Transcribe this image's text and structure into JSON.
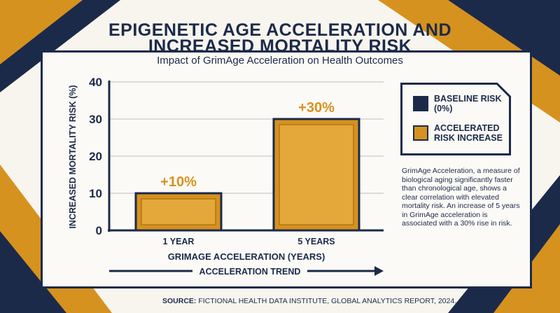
{
  "header": {
    "title_line1": "EPIGENETIC AGE ACCELERATION AND",
    "title_line2": "INCREASED MORTALITY RISK",
    "subtitle": "Impact of GrimAge Acceleration on Health Outcomes"
  },
  "chart_data": {
    "type": "bar",
    "categories": [
      "1 YEAR",
      "5 YEARS"
    ],
    "values": [
      10,
      30
    ],
    "data_labels": [
      "+10%",
      "+30%"
    ],
    "xlabel": "GRIMAGE ACCELERATION (YEARS)",
    "ylabel": "INCREASED MORTALITY RISK (%)",
    "ylim": [
      0,
      40
    ],
    "yticks": [
      "0",
      "10",
      "20",
      "30",
      "40"
    ],
    "grid": true,
    "legend_position": "right",
    "trend_label": "ACCELERATION TREND"
  },
  "legend": {
    "baseline": "BASELINE RISK (0%)",
    "accelerated": "ACCELERATED RISK INCREASE"
  },
  "description": "GrimAge Acceleration, a measure of biological aging significantly faster than chronological age, shows a clear correlation with elevated mortality risk. An increase of 5 years in GrimAge acceleration is associated with a 30% rise in risk.",
  "source": {
    "label": "SOURCE:",
    "text": "FICTIONAL HEALTH DATA INSTITUTE, GLOBAL ANALYTICS REPORT, 2024."
  },
  "colors": {
    "navy": "#1c2a4a",
    "gold": "#d6921f",
    "gold_light": "#e3a73a",
    "gold_dark": "#b47418",
    "background": "#f7f5ee"
  }
}
